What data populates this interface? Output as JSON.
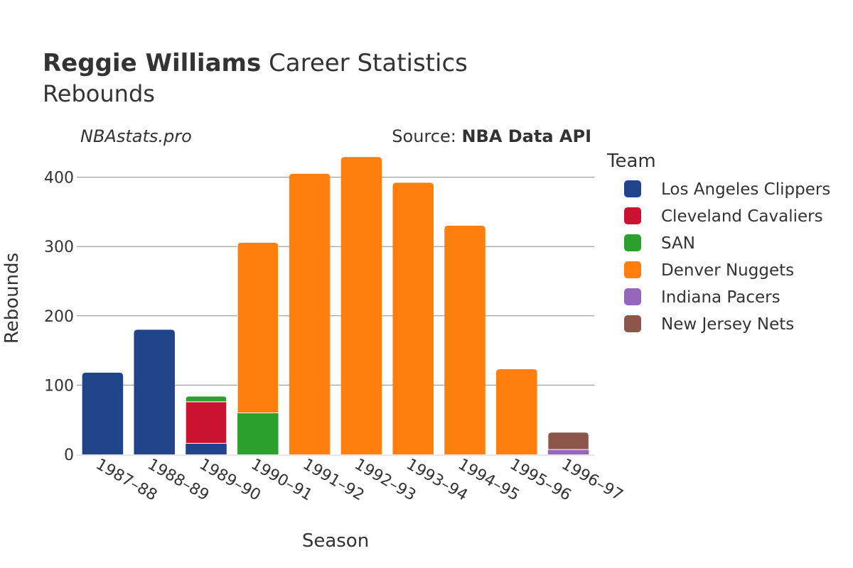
{
  "title": {
    "bold": "Reggie Williams",
    "rest": " Career Statistics",
    "subtitle": "Rebounds"
  },
  "watermark": "NBAstats.pro",
  "source": {
    "prefix": "Source: ",
    "name": "NBA Data API"
  },
  "legend": {
    "title": "Team"
  },
  "chart_data": {
    "type": "bar",
    "stacked": true,
    "xlabel": "Season",
    "ylabel": "Rebounds",
    "ylim": [
      0,
      440
    ],
    "yticks": [
      0,
      100,
      200,
      300,
      400
    ],
    "grid": true,
    "legend_position": "right",
    "categories": [
      "1987–88",
      "1988–89",
      "1989–90",
      "1990–91",
      "1991–92",
      "1992–93",
      "1993–94",
      "1994–95",
      "1995–96",
      "1996–97"
    ],
    "series": [
      {
        "name": "Los Angeles Clippers",
        "color": "#1f448a",
        "values": [
          118,
          180,
          16,
          0,
          0,
          0,
          0,
          0,
          0,
          0
        ]
      },
      {
        "name": "Cleveland Cavaliers",
        "color": "#cc1231",
        "values": [
          0,
          0,
          60,
          0,
          0,
          0,
          0,
          0,
          0,
          0
        ]
      },
      {
        "name": "SAN",
        "color": "#2ca02c",
        "values": [
          0,
          0,
          8,
          60,
          0,
          0,
          0,
          0,
          0,
          0
        ]
      },
      {
        "name": "Denver Nuggets",
        "color": "#ff7f0e",
        "values": [
          0,
          0,
          0,
          246,
          405,
          429,
          392,
          330,
          123,
          0
        ]
      },
      {
        "name": "Indiana Pacers",
        "color": "#9467bd",
        "values": [
          0,
          0,
          0,
          0,
          0,
          0,
          0,
          0,
          0,
          7
        ]
      },
      {
        "name": "New Jersey Nets",
        "color": "#8c564b",
        "values": [
          0,
          0,
          0,
          0,
          0,
          0,
          0,
          0,
          0,
          25
        ]
      }
    ]
  }
}
